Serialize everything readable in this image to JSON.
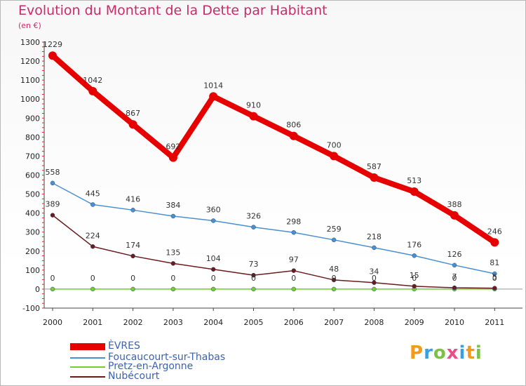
{
  "chart_data": {
    "type": "line",
    "title": "Evolution du Montant de la Dette par Habitant",
    "subtitle": "(en €)",
    "categories": [
      "2000",
      "2001",
      "2002",
      "2003",
      "2004",
      "2005",
      "2006",
      "2007",
      "2008",
      "2009",
      "2010",
      "2011"
    ],
    "ylim": [
      -100,
      1300
    ],
    "yticks": [
      -100,
      0,
      100,
      200,
      300,
      400,
      500,
      600,
      700,
      800,
      900,
      1000,
      1100,
      1200,
      1300
    ],
    "grid": false,
    "legend_position": "bottom-left",
    "series": [
      {
        "name": "ÈVRES",
        "color": "#e60000",
        "values": [
          1229,
          1042,
          867,
          692,
          1014,
          910,
          806,
          700,
          587,
          513,
          388,
          246
        ]
      },
      {
        "name": "Foucaucourt-sur-Thabas",
        "color": "#4a90d0",
        "values": [
          558,
          445,
          416,
          384,
          360,
          326,
          298,
          259,
          218,
          176,
          126,
          81
        ]
      },
      {
        "name": "Pretz-en-Argonne",
        "color": "#77cc33",
        "values": [
          0,
          0,
          0,
          0,
          0,
          0,
          0,
          0,
          0,
          0,
          0,
          0
        ]
      },
      {
        "name": "Nubécourt",
        "color": "#6a1b1b",
        "values": [
          389,
          224,
          174,
          135,
          104,
          73,
          97,
          48,
          34,
          15,
          7,
          5
        ]
      }
    ],
    "data_labels": [
      [
        "1229",
        "1042",
        "867",
        "692",
        "1014",
        "910",
        "806",
        "700",
        "587",
        "513",
        "388",
        "246"
      ],
      [
        "558",
        "445",
        "416",
        "384",
        "360",
        "326",
        "298",
        "259",
        "218",
        "176",
        "126",
        "81"
      ],
      [
        "0",
        "0",
        "0",
        "0",
        "0",
        "0",
        "0",
        "0",
        "0",
        "0",
        "0",
        "0"
      ],
      [
        "389",
        "224",
        "174",
        "135",
        "104",
        "73",
        "97",
        "48",
        "34",
        "15",
        "7",
        "5"
      ]
    ]
  },
  "logo": {
    "text": "Proxiti",
    "colors": [
      "#f29a1b",
      "#3aa0dd",
      "#7cc242",
      "#e94e8a",
      "#3aa0dd",
      "#f29a1b",
      "#7cc242"
    ]
  }
}
